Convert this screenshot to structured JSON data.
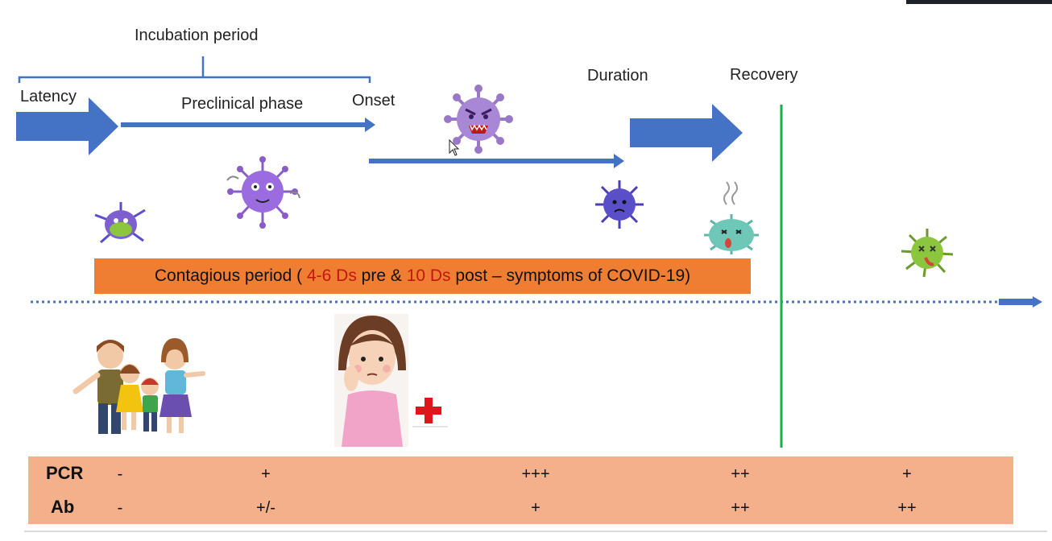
{
  "labels": {
    "incubation": "Incubation period",
    "latency": "Latency",
    "preclinical": "Preclinical phase",
    "onset": "Onset",
    "duration": "Duration",
    "recovery": "Recovery"
  },
  "banner": {
    "prefix": "Contagious period ( ",
    "pre_days": "4-6 Ds",
    "mid": " pre & ",
    "post_days": "10 Ds",
    "suffix": " post – symptoms of COVID-19)"
  },
  "table": {
    "rows": [
      {
        "name": "PCR",
        "values": [
          "-",
          "+",
          "+++",
          "++",
          "+"
        ]
      },
      {
        "name": "Ab",
        "values": [
          "-",
          "+/-",
          "+",
          "++",
          "++"
        ]
      }
    ]
  },
  "colors": {
    "arrow": "#4472c4",
    "banner": "#ef7e32",
    "banner_highlight": "#c3170d",
    "recovery_line": "#1aae4a",
    "table_bg": "#f4b08b",
    "virus_purple": "#8a5cc9",
    "virus_blue": "#5a4fc9",
    "virus_teal": "#6fc7b8",
    "virus_green": "#8cc63f"
  },
  "icons": [
    "virus-icon",
    "family-icon",
    "sick-woman-icon",
    "red-cross-icon",
    "mouse-cursor-icon"
  ]
}
